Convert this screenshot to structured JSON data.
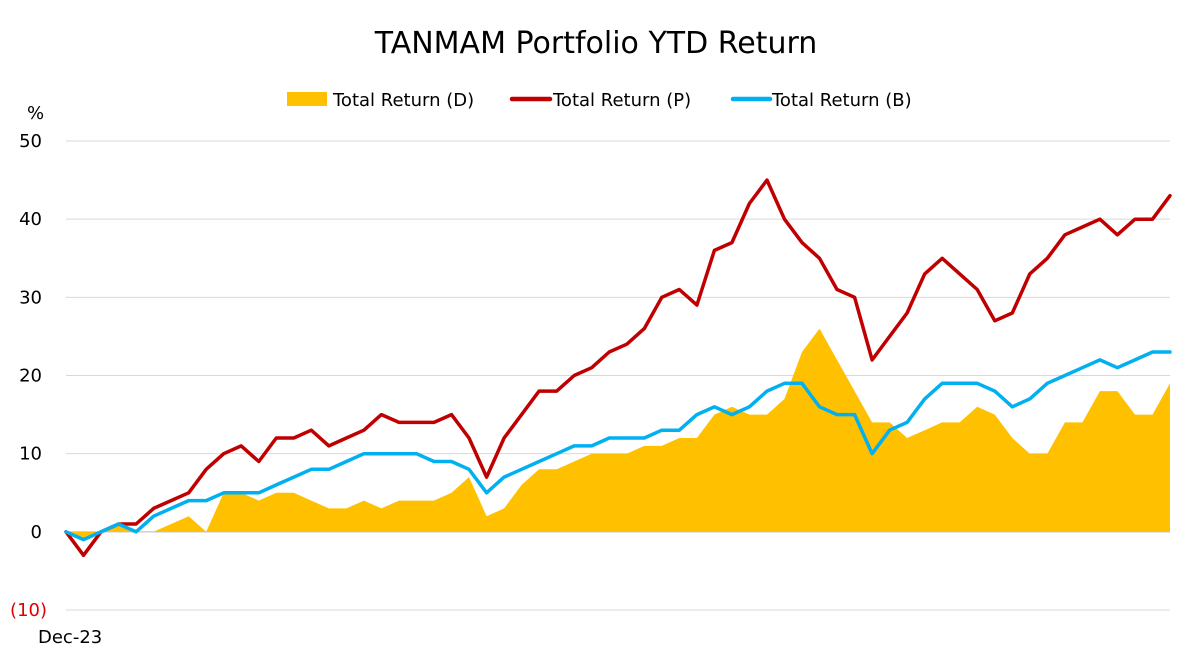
{
  "chart_data": {
    "type": "line",
    "title": "TANMAM Portfolio YTD Return",
    "ylabel": "%",
    "ylim": [
      -10,
      50
    ],
    "y_ticks": [
      {
        "value": 50,
        "label": "50"
      },
      {
        "value": 40,
        "label": "40"
      },
      {
        "value": 30,
        "label": "30"
      },
      {
        "value": 20,
        "label": "20"
      },
      {
        "value": 10,
        "label": "10"
      },
      {
        "value": 0,
        "label": "0"
      },
      {
        "value": -10,
        "label": "(10)"
      }
    ],
    "x_tick_label": "Dec-23",
    "grid": "horizontal",
    "legend_position": "top",
    "x": [
      0,
      4,
      8,
      12,
      16,
      20,
      24,
      28,
      32,
      36,
      40,
      44,
      48,
      52,
      56,
      60,
      64,
      68,
      72,
      76,
      80,
      84,
      88,
      92,
      96,
      100,
      104,
      108,
      112,
      116,
      120,
      124,
      128,
      132,
      136,
      140,
      144,
      148,
      152,
      156,
      160,
      164,
      168,
      172,
      176,
      180,
      184,
      188,
      192,
      196,
      200,
      204,
      208,
      212,
      216,
      220,
      224,
      228,
      232,
      236,
      240,
      244,
      248,
      252
    ],
    "series": [
      {
        "name": "Total Return (D)",
        "style": "area",
        "color": "#ffc000",
        "values": [
          0,
          -1,
          0,
          1,
          0,
          0,
          1,
          2,
          0,
          5,
          5,
          4,
          5,
          5,
          4,
          3,
          3,
          4,
          3,
          4,
          4,
          4,
          5,
          7,
          2,
          3,
          6,
          8,
          8,
          9,
          10,
          10,
          10,
          11,
          11,
          12,
          12,
          15,
          16,
          15,
          15,
          17,
          23,
          26,
          22,
          18,
          14,
          14,
          12,
          13,
          14,
          14,
          16,
          15,
          12,
          10,
          10,
          14,
          14,
          18,
          18,
          15,
          15,
          19
        ]
      },
      {
        "name": "Total Return (P)",
        "style": "line",
        "color": "#c00000",
        "values": [
          0,
          -3,
          0,
          1,
          1,
          3,
          4,
          5,
          8,
          10,
          11,
          9,
          12,
          12,
          13,
          11,
          12,
          13,
          15,
          14,
          14,
          14,
          15,
          12,
          7,
          12,
          15,
          18,
          18,
          20,
          21,
          23,
          24,
          26,
          30,
          31,
          29,
          36,
          37,
          42,
          45,
          40,
          37,
          35,
          31,
          30,
          22,
          25,
          28,
          33,
          35,
          33,
          31,
          27,
          28,
          33,
          35,
          38,
          39,
          40,
          38,
          40,
          40,
          43
        ]
      },
      {
        "name": "Total Return (B)",
        "style": "line",
        "color": "#00b0f0",
        "values": [
          0,
          -1,
          0,
          1,
          0,
          2,
          3,
          4,
          4,
          5,
          5,
          5,
          6,
          7,
          8,
          8,
          9,
          10,
          10,
          10,
          10,
          9,
          9,
          8,
          5,
          7,
          8,
          9,
          10,
          11,
          11,
          12,
          12,
          12,
          13,
          13,
          15,
          16,
          15,
          16,
          18,
          19,
          19,
          16,
          15,
          15,
          10,
          13,
          14,
          17,
          19,
          19,
          19,
          18,
          16,
          17,
          19,
          20,
          21,
          22,
          21,
          22,
          23,
          23
        ]
      }
    ]
  }
}
